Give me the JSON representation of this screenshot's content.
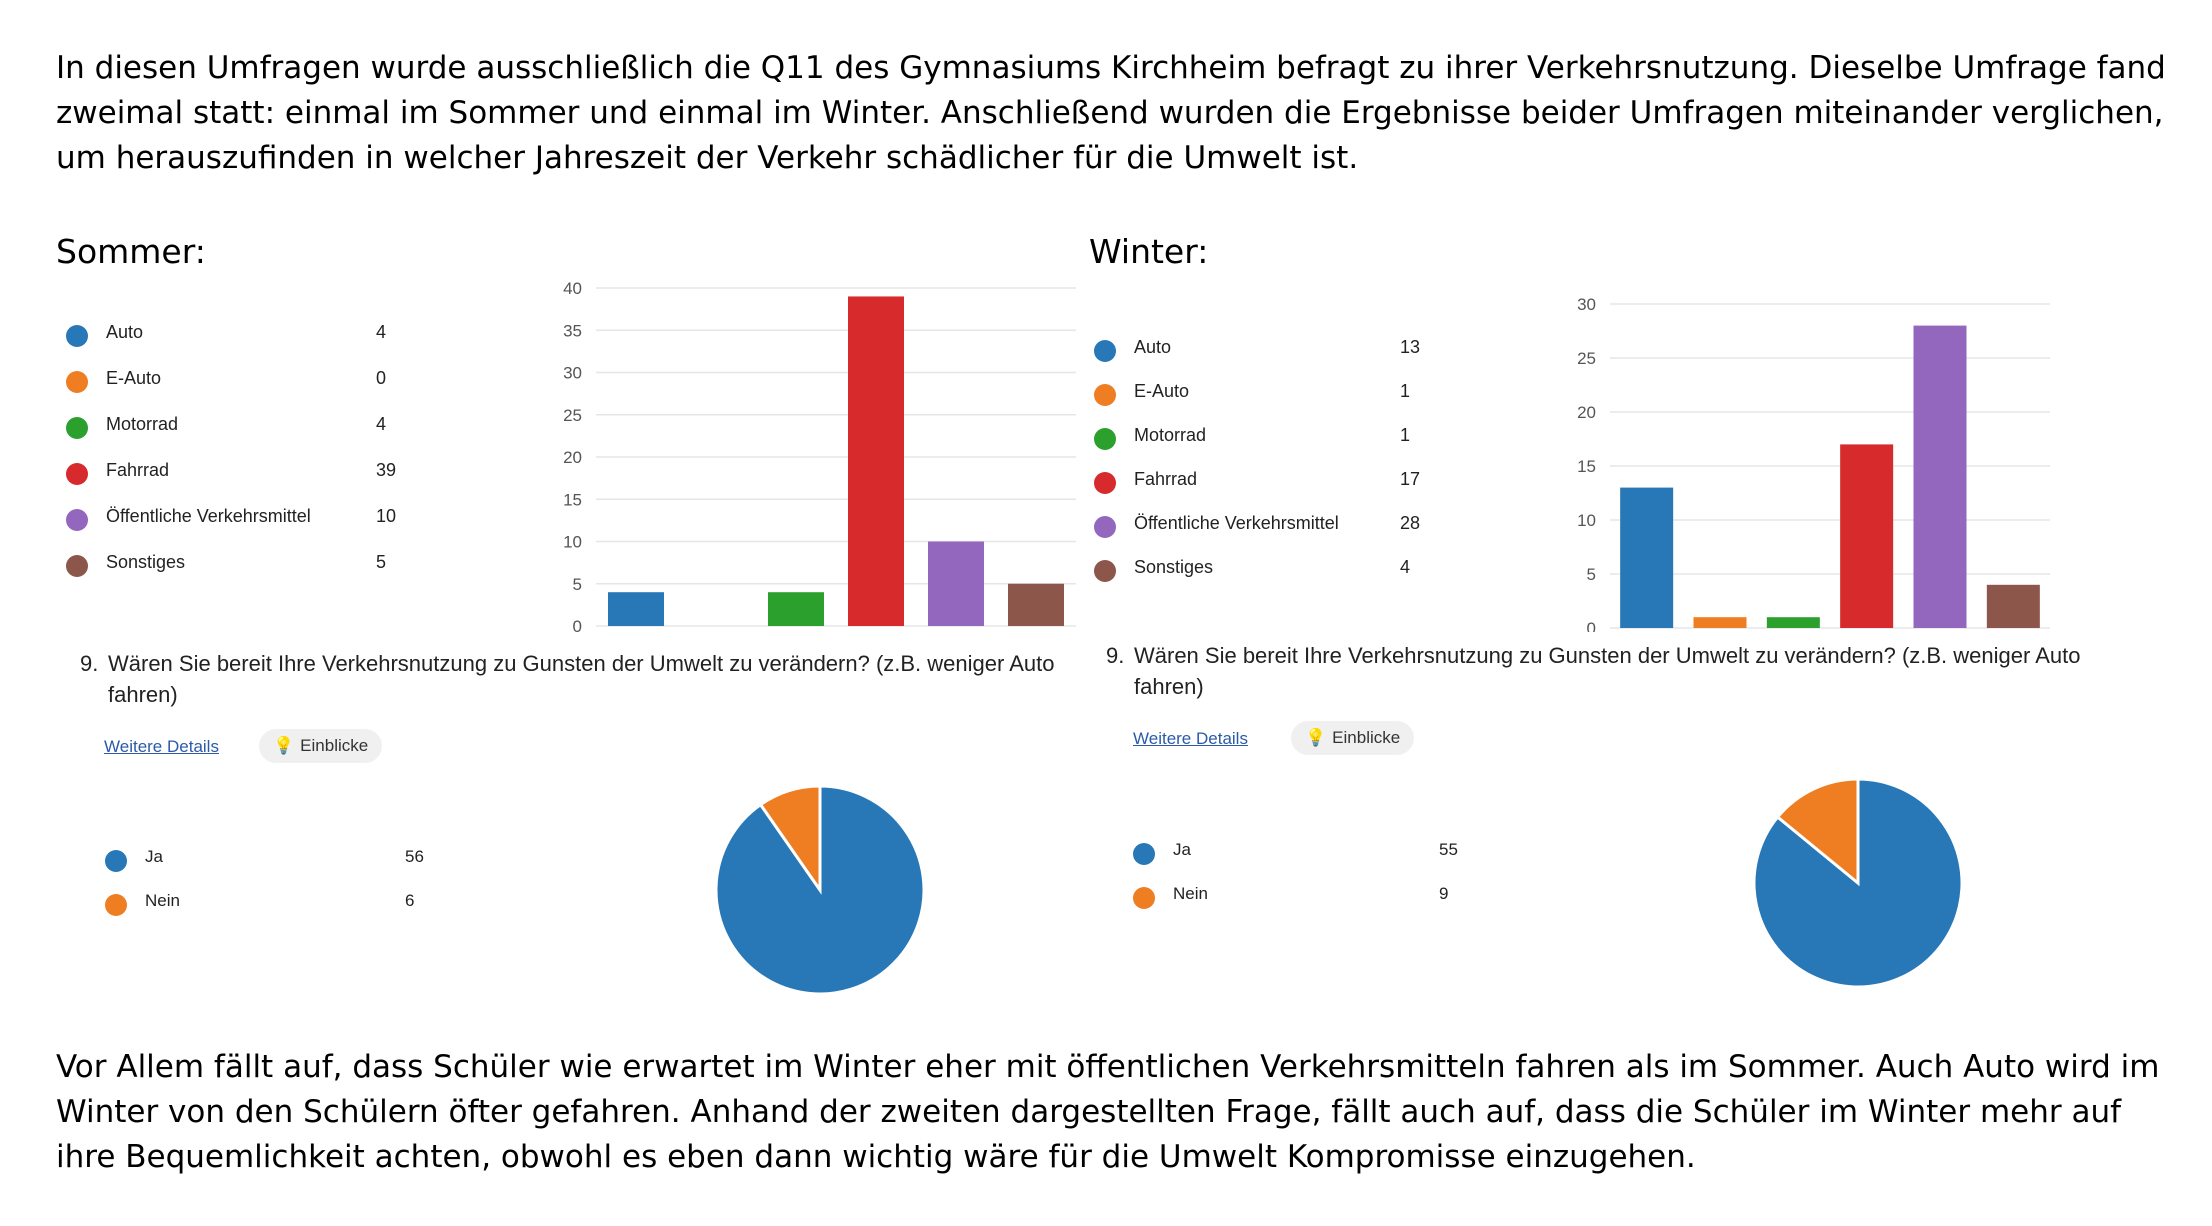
{
  "intro": "In diesen Umfragen wurde ausschließlich die Q11 des Gymnasiums Kirchheim befragt zu ihrer Verkehrsnutzung. Dieselbe Umfrage fand zweimal statt: einmal im Sommer und einmal im Winter. Anschließend wurden die Ergebnisse beider Umfragen miteinander verglichen, um herauszufinden in welcher Jahreszeit der Verkehr schädlicher für die Umwelt ist.",
  "outro": "Vor Allem fällt auf, dass Schüler wie erwartet im Winter eher mit öffentlichen Verkehrsmitteln fahren als im Sommer. Auch Auto wird im Winter von den Schülern öfter gefahren. Anhand der zweiten dargestellten Frage, fällt auch auf, dass die Schüler im Winter mehr auf ihre Bequemlichkeit achten, obwohl es eben dann wichtig wäre für die Umwelt Kompromisse einzugehen.",
  "sommer": {
    "title": "Sommer:",
    "question_number": "9.",
    "question_text": "Wären Sie bereit Ihre Verkehrsnutzung zu Gunsten der Umwelt zu verändern? (z.B. weniger Auto fahren)",
    "details_label": "Weitere Details",
    "insights_label": "Einblicke"
  },
  "winter": {
    "title": "Winter:",
    "question_number": "9.",
    "question_text": "Wären Sie bereit Ihre Verkehrsnutzung zu Gunsten der Umwelt zu verändern? (z.B. weniger Auto fahren)",
    "details_label": "Weitere Details",
    "insights_label": "Einblicke"
  },
  "colors": {
    "Auto": "#2878b8",
    "E-Auto": "#ef7d22",
    "Motorrad": "#2ca02c",
    "Fahrrad": "#d62a2c",
    "Öffentliche Verkehrsmittel": "#9367bd",
    "Sonstiges": "#8c564b",
    "Ja": "#2878b8",
    "Nein": "#ef7d22",
    "grid": "#e6e6e6",
    "axis_text": "#555555"
  },
  "chart_data": [
    {
      "type": "bar",
      "categories": [
        "Auto",
        "E-Auto",
        "Motorrad",
        "Fahrrad",
        "Öffentliche Verkehrsmittel",
        "Sonstiges"
      ],
      "values": [
        4,
        0,
        4,
        39,
        10,
        5
      ],
      "ylim": [
        0,
        40
      ],
      "yticks": [
        0,
        5,
        10,
        15,
        20,
        25,
        30,
        35,
        40
      ],
      "grid": true,
      "legend": "left"
    },
    {
      "type": "bar",
      "categories": [
        "Auto",
        "E-Auto",
        "Motorrad",
        "Fahrrad",
        "Öffentliche Verkehrsmittel",
        "Sonstiges"
      ],
      "values": [
        13,
        1,
        1,
        17,
        28,
        4
      ],
      "ylim": [
        0,
        30
      ],
      "yticks": [
        0,
        5,
        10,
        15,
        20,
        25,
        30
      ],
      "grid": true,
      "legend": "left"
    },
    {
      "type": "pie",
      "categories": [
        "Ja",
        "Nein"
      ],
      "values": [
        56,
        6
      ],
      "legend": "left"
    },
    {
      "type": "pie",
      "categories": [
        "Ja",
        "Nein"
      ],
      "values": [
        55,
        9
      ],
      "legend": "left"
    }
  ]
}
